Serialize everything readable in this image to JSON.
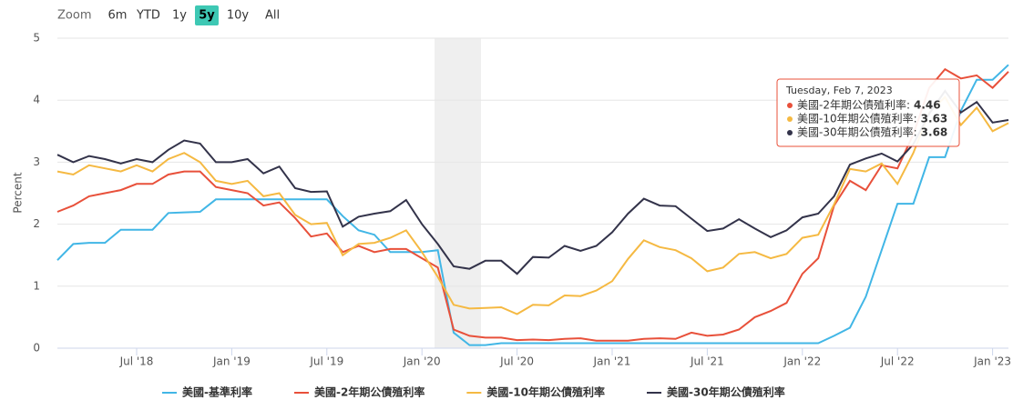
{
  "range_selector": {
    "label": "Zoom",
    "buttons": [
      "6m",
      "YTD",
      "1y",
      "5y",
      "10y",
      "All"
    ],
    "selected": "5y"
  },
  "chart_data": {
    "type": "line",
    "ylabel": "Percent",
    "categories": [
      null,
      null,
      null,
      null,
      null,
      "Jul '18",
      null,
      null,
      null,
      null,
      null,
      "Jan '19",
      null,
      null,
      null,
      null,
      null,
      "Jul '19",
      null,
      null,
      null,
      null,
      null,
      "Jan '20",
      null,
      null,
      null,
      null,
      null,
      "Jul '20",
      null,
      null,
      null,
      null,
      null,
      "Jan '21",
      null,
      null,
      null,
      null,
      null,
      "Jul '21",
      null,
      null,
      null,
      null,
      null,
      "Jan '22",
      null,
      null,
      null,
      null,
      null,
      "Jul '22",
      null,
      null,
      null,
      null,
      null,
      "Jan '23",
      null
    ],
    "series": [
      {
        "name": "美國-基準利率",
        "color": "#41b6e6",
        "values": [
          1.42,
          1.68,
          1.7,
          1.7,
          1.91,
          1.91,
          1.91,
          2.18,
          2.19,
          2.2,
          2.4,
          2.4,
          2.4,
          2.4,
          2.4,
          2.4,
          2.4,
          2.4,
          2.13,
          1.9,
          1.83,
          1.55,
          1.55,
          1.55,
          1.58,
          0.25,
          0.05,
          0.05,
          0.08,
          0.08,
          0.08,
          0.08,
          0.08,
          0.08,
          0.08,
          0.08,
          0.08,
          0.08,
          0.08,
          0.08,
          0.08,
          0.08,
          0.08,
          0.08,
          0.08,
          0.08,
          0.08,
          0.08,
          0.08,
          0.2,
          0.33,
          0.83,
          1.58,
          2.33,
          2.33,
          3.08,
          3.08,
          3.83,
          4.33,
          4.33,
          4.57
        ]
      },
      {
        "name": "美國-2年期公債殖利率",
        "color": "#e8503a",
        "values": [
          2.2,
          2.3,
          2.45,
          2.5,
          2.55,
          2.65,
          2.65,
          2.8,
          2.85,
          2.85,
          2.6,
          2.55,
          2.5,
          2.3,
          2.35,
          2.1,
          1.8,
          1.85,
          1.55,
          1.65,
          1.55,
          1.6,
          1.6,
          1.45,
          1.3,
          0.3,
          0.2,
          0.17,
          0.17,
          0.13,
          0.14,
          0.13,
          0.15,
          0.16,
          0.12,
          0.12,
          0.12,
          0.15,
          0.16,
          0.15,
          0.25,
          0.2,
          0.22,
          0.3,
          0.5,
          0.6,
          0.73,
          1.2,
          1.45,
          2.3,
          2.7,
          2.55,
          2.95,
          2.9,
          3.45,
          4.2,
          4.5,
          4.35,
          4.4,
          4.2,
          4.46
        ]
      },
      {
        "name": "美國-10年期公債殖利率",
        "color": "#f5b942",
        "values": [
          2.85,
          2.8,
          2.95,
          2.9,
          2.85,
          2.95,
          2.85,
          3.05,
          3.15,
          3.0,
          2.7,
          2.65,
          2.7,
          2.45,
          2.5,
          2.15,
          2.0,
          2.02,
          1.5,
          1.68,
          1.7,
          1.78,
          1.9,
          1.55,
          1.15,
          0.7,
          0.64,
          0.65,
          0.66,
          0.55,
          0.7,
          0.69,
          0.85,
          0.84,
          0.93,
          1.08,
          1.44,
          1.74,
          1.63,
          1.58,
          1.45,
          1.24,
          1.3,
          1.52,
          1.55,
          1.45,
          1.52,
          1.78,
          1.83,
          2.32,
          2.89,
          2.85,
          2.98,
          2.65,
          3.15,
          3.8,
          4.05,
          3.6,
          3.88,
          3.5,
          3.63
        ]
      },
      {
        "name": "美國-30年期公債殖利率",
        "color": "#33334a",
        "values": [
          3.12,
          3.0,
          3.1,
          3.05,
          2.98,
          3.05,
          3.0,
          3.2,
          3.35,
          3.3,
          3.0,
          3.0,
          3.05,
          2.82,
          2.93,
          2.58,
          2.52,
          2.53,
          1.96,
          2.12,
          2.17,
          2.21,
          2.39,
          2.0,
          1.68,
          1.32,
          1.28,
          1.41,
          1.41,
          1.2,
          1.47,
          1.46,
          1.65,
          1.57,
          1.65,
          1.87,
          2.17,
          2.41,
          2.3,
          2.29,
          2.09,
          1.89,
          1.93,
          2.08,
          1.93,
          1.79,
          1.9,
          2.11,
          2.17,
          2.45,
          2.96,
          3.06,
          3.14,
          3.01,
          3.29,
          3.78,
          4.15,
          3.8,
          3.97,
          3.64,
          3.68
        ]
      }
    ],
    "ylim": [
      0,
      5
    ],
    "yticks": [
      0,
      1,
      2,
      3,
      4,
      5
    ],
    "grid": true,
    "tooltip": {
      "title": "Tuesday, Feb 7, 2023",
      "items": [
        {
          "label": "美國-2年期公債殖利率:",
          "value": 4.46,
          "color": "#e8503a"
        },
        {
          "label": "美國-10年期公債殖利率:",
          "value": 3.63,
          "color": "#f5b942"
        },
        {
          "label": "美國-30年期公債殖利率:",
          "value": 3.68,
          "color": "#33334a"
        }
      ]
    }
  }
}
